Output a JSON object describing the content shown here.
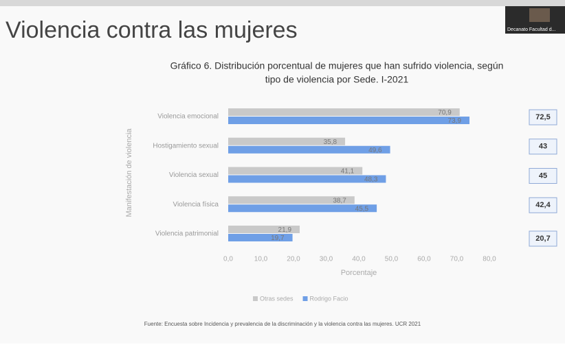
{
  "slide_title": "Violencia contra las mujeres",
  "video_label": "Decanato Facultad d...",
  "source": "Fuente: Encuesta sobre Incidencia y prevalencia de la discriminación y la violencia contra las mujeres. UCR 2021",
  "side_boxes": [
    "72,5",
    "43",
    "45",
    "42,4",
    "20,7"
  ],
  "chart_data": {
    "type": "hbar",
    "title": [
      "Gráfico 6. Distribución porcentual de mujeres que han sufrido violencia, según",
      "tipo de violencia por Sede. I-2021"
    ],
    "categories": [
      "Violencia emocional",
      "Hostigamiento sexual",
      "Violencia sexual",
      "Violencia física",
      "Violencia patrimonial"
    ],
    "series": [
      {
        "name": "Otras sedes",
        "color": "#c9c9c9",
        "values": [
          70.9,
          35.8,
          41.1,
          38.7,
          21.9
        ],
        "value_labels": [
          "70,9",
          "35,8",
          "41,1",
          "38,7",
          "21,9"
        ]
      },
      {
        "name": "Rodrigo Facio",
        "color": "#6f9fe6",
        "values": [
          73.9,
          49.6,
          48.3,
          45.5,
          19.7
        ],
        "value_labels": [
          "73,9",
          "49,6",
          "48,3",
          "45,5",
          "19,7"
        ]
      }
    ],
    "x_label": "Porcentaje",
    "y_label": "Manifestación de violencia",
    "xlim": [
      0,
      80
    ],
    "xticks": [
      {
        "value": 0,
        "label": "0,0"
      },
      {
        "value": 10,
        "label": "10,0"
      },
      {
        "value": 20,
        "label": "20,0"
      },
      {
        "value": 30,
        "label": "30,0"
      },
      {
        "value": 40,
        "label": "40,0"
      },
      {
        "value": 50,
        "label": "50,0"
      },
      {
        "value": 60,
        "label": "60,0"
      },
      {
        "value": 70,
        "label": "70,0"
      },
      {
        "value": 80,
        "label": "80,0"
      }
    ],
    "grid": false,
    "legend": "bottom"
  }
}
